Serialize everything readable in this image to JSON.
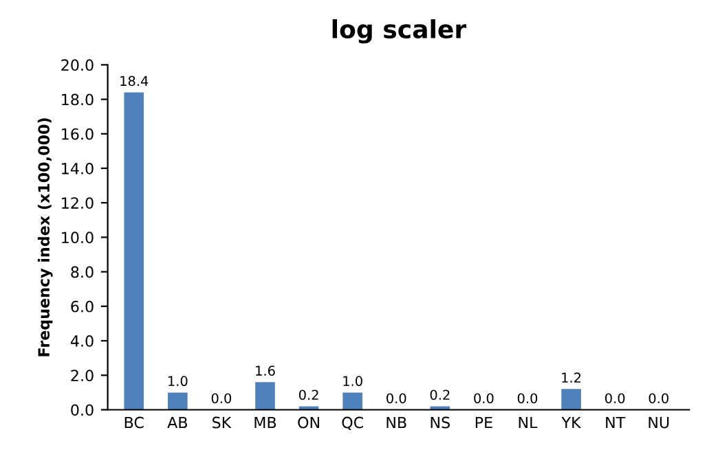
{
  "chart_data": {
    "type": "bar",
    "title": "log scaler",
    "ylabel": "Frequency index (x100,000)",
    "categories": [
      "BC",
      "AB",
      "SK",
      "MB",
      "ON",
      "QC",
      "NB",
      "NS",
      "PE",
      "NL",
      "YK",
      "NT",
      "NU"
    ],
    "values": [
      18.4,
      1.0,
      0.0,
      1.6,
      0.2,
      1.0,
      0.0,
      0.2,
      0.0,
      0.0,
      1.2,
      0.0,
      0.0
    ],
    "value_labels": [
      "18.4",
      "1.0",
      "0.0",
      "1.6",
      "0.2",
      "1.0",
      "0.0",
      "0.2",
      "0.0",
      "0.0",
      "1.2",
      "0.0",
      "0.0"
    ],
    "color": "#4f81bd",
    "ylim": [
      0,
      20
    ],
    "yticks": [
      {
        "value": 0,
        "label": "0.0"
      },
      {
        "value": 2,
        "label": "2.0"
      },
      {
        "value": 4,
        "label": "4.0"
      },
      {
        "value": 6,
        "label": "6.0"
      },
      {
        "value": 8,
        "label": "8.0"
      },
      {
        "value": 10,
        "label": "10.0"
      },
      {
        "value": 12,
        "label": "12.0"
      },
      {
        "value": 14,
        "label": "14.0"
      },
      {
        "value": 16,
        "label": "16.0"
      },
      {
        "value": 18,
        "label": "18.0"
      },
      {
        "value": 20,
        "label": "20.0"
      }
    ],
    "grid": false
  }
}
